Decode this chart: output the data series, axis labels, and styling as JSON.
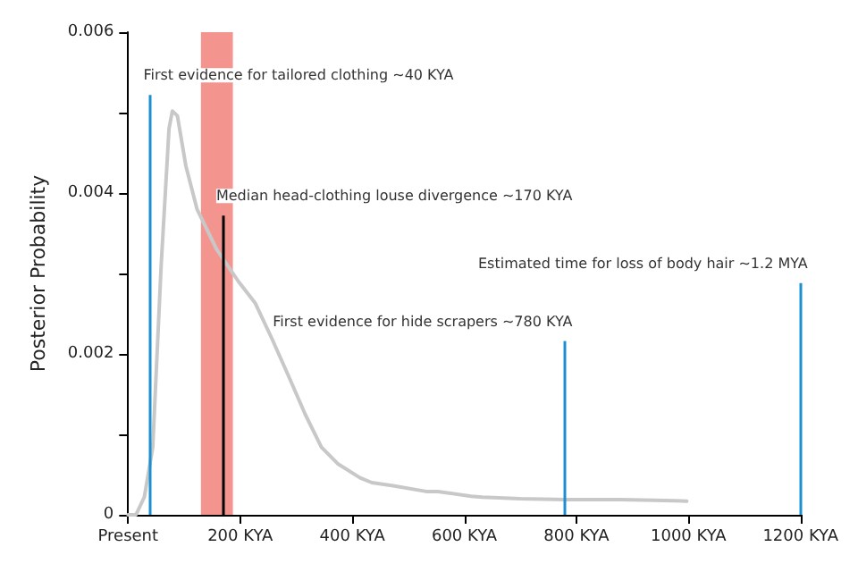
{
  "chart_data": {
    "type": "line",
    "ylabel": "Posterior Probability",
    "x": [
      0,
      14,
      29,
      44,
      59,
      73,
      79,
      88,
      103,
      123,
      158,
      197,
      227,
      256,
      286,
      316,
      345,
      375,
      414,
      435,
      473,
      532,
      553,
      612,
      632,
      700,
      780,
      879,
      940,
      997
    ],
    "series": [
      {
        "color": "#c8c8c8",
        "values": [
          0,
          0,
          0.00022,
          0.00084,
          0.0031,
          0.0048,
          0.00502,
          0.00496,
          0.00434,
          0.0038,
          0.0033,
          0.0029,
          0.00263,
          0.0022,
          0.00173,
          0.00125,
          0.00084,
          0.00063,
          0.00046,
          0.0004,
          0.00036,
          0.00029,
          0.00029,
          0.00023,
          0.00022,
          0.0002,
          0.00019,
          0.00019,
          0.00018,
          0.00017
        ]
      }
    ],
    "xlim": [
      0,
      1200
    ],
    "xticks": [
      {
        "value": 0,
        "label": "Present"
      },
      {
        "value": 200,
        "label": "200 KYA"
      },
      {
        "value": 400,
        "label": "400 KYA"
      },
      {
        "value": 600,
        "label": "600 KYA"
      },
      {
        "value": 800,
        "label": "800 KYA"
      },
      {
        "value": 1000,
        "label": "1000 KYA"
      },
      {
        "value": 1200,
        "label": "1200 KYA"
      }
    ],
    "ylim": [
      0,
      0.006
    ],
    "yticks": [
      0,
      {
        "value": 0.001,
        "label": null
      },
      0.002,
      {
        "value": 0.003,
        "label": null
      },
      0.004,
      {
        "value": 0.005,
        "label": null
      },
      0.006
    ],
    "bands": [
      {
        "axis": "x",
        "from": 130,
        "to": 187,
        "color": "#f4948f"
      }
    ],
    "ref_lines": [
      {
        "axis": "x",
        "value": 40,
        "label": "First evidence for tailored clothing ~40 KYA",
        "color": "#1d8fd1"
      },
      {
        "axis": "x",
        "value": 170,
        "label": "Median head-clothing louse divergence ~170 KYA",
        "color": "#000000"
      },
      {
        "axis": "x",
        "value": 780,
        "label": "First evidence for hide scrapers ~780 KYA",
        "color": "#1d8fd1"
      },
      {
        "axis": "x",
        "value": 1200,
        "label": "Estimated time for loss of body hair ~1.2 MYA",
        "color": "#1d8fd1"
      }
    ],
    "grid": false,
    "marker": "none",
    "line_style": "solid"
  }
}
